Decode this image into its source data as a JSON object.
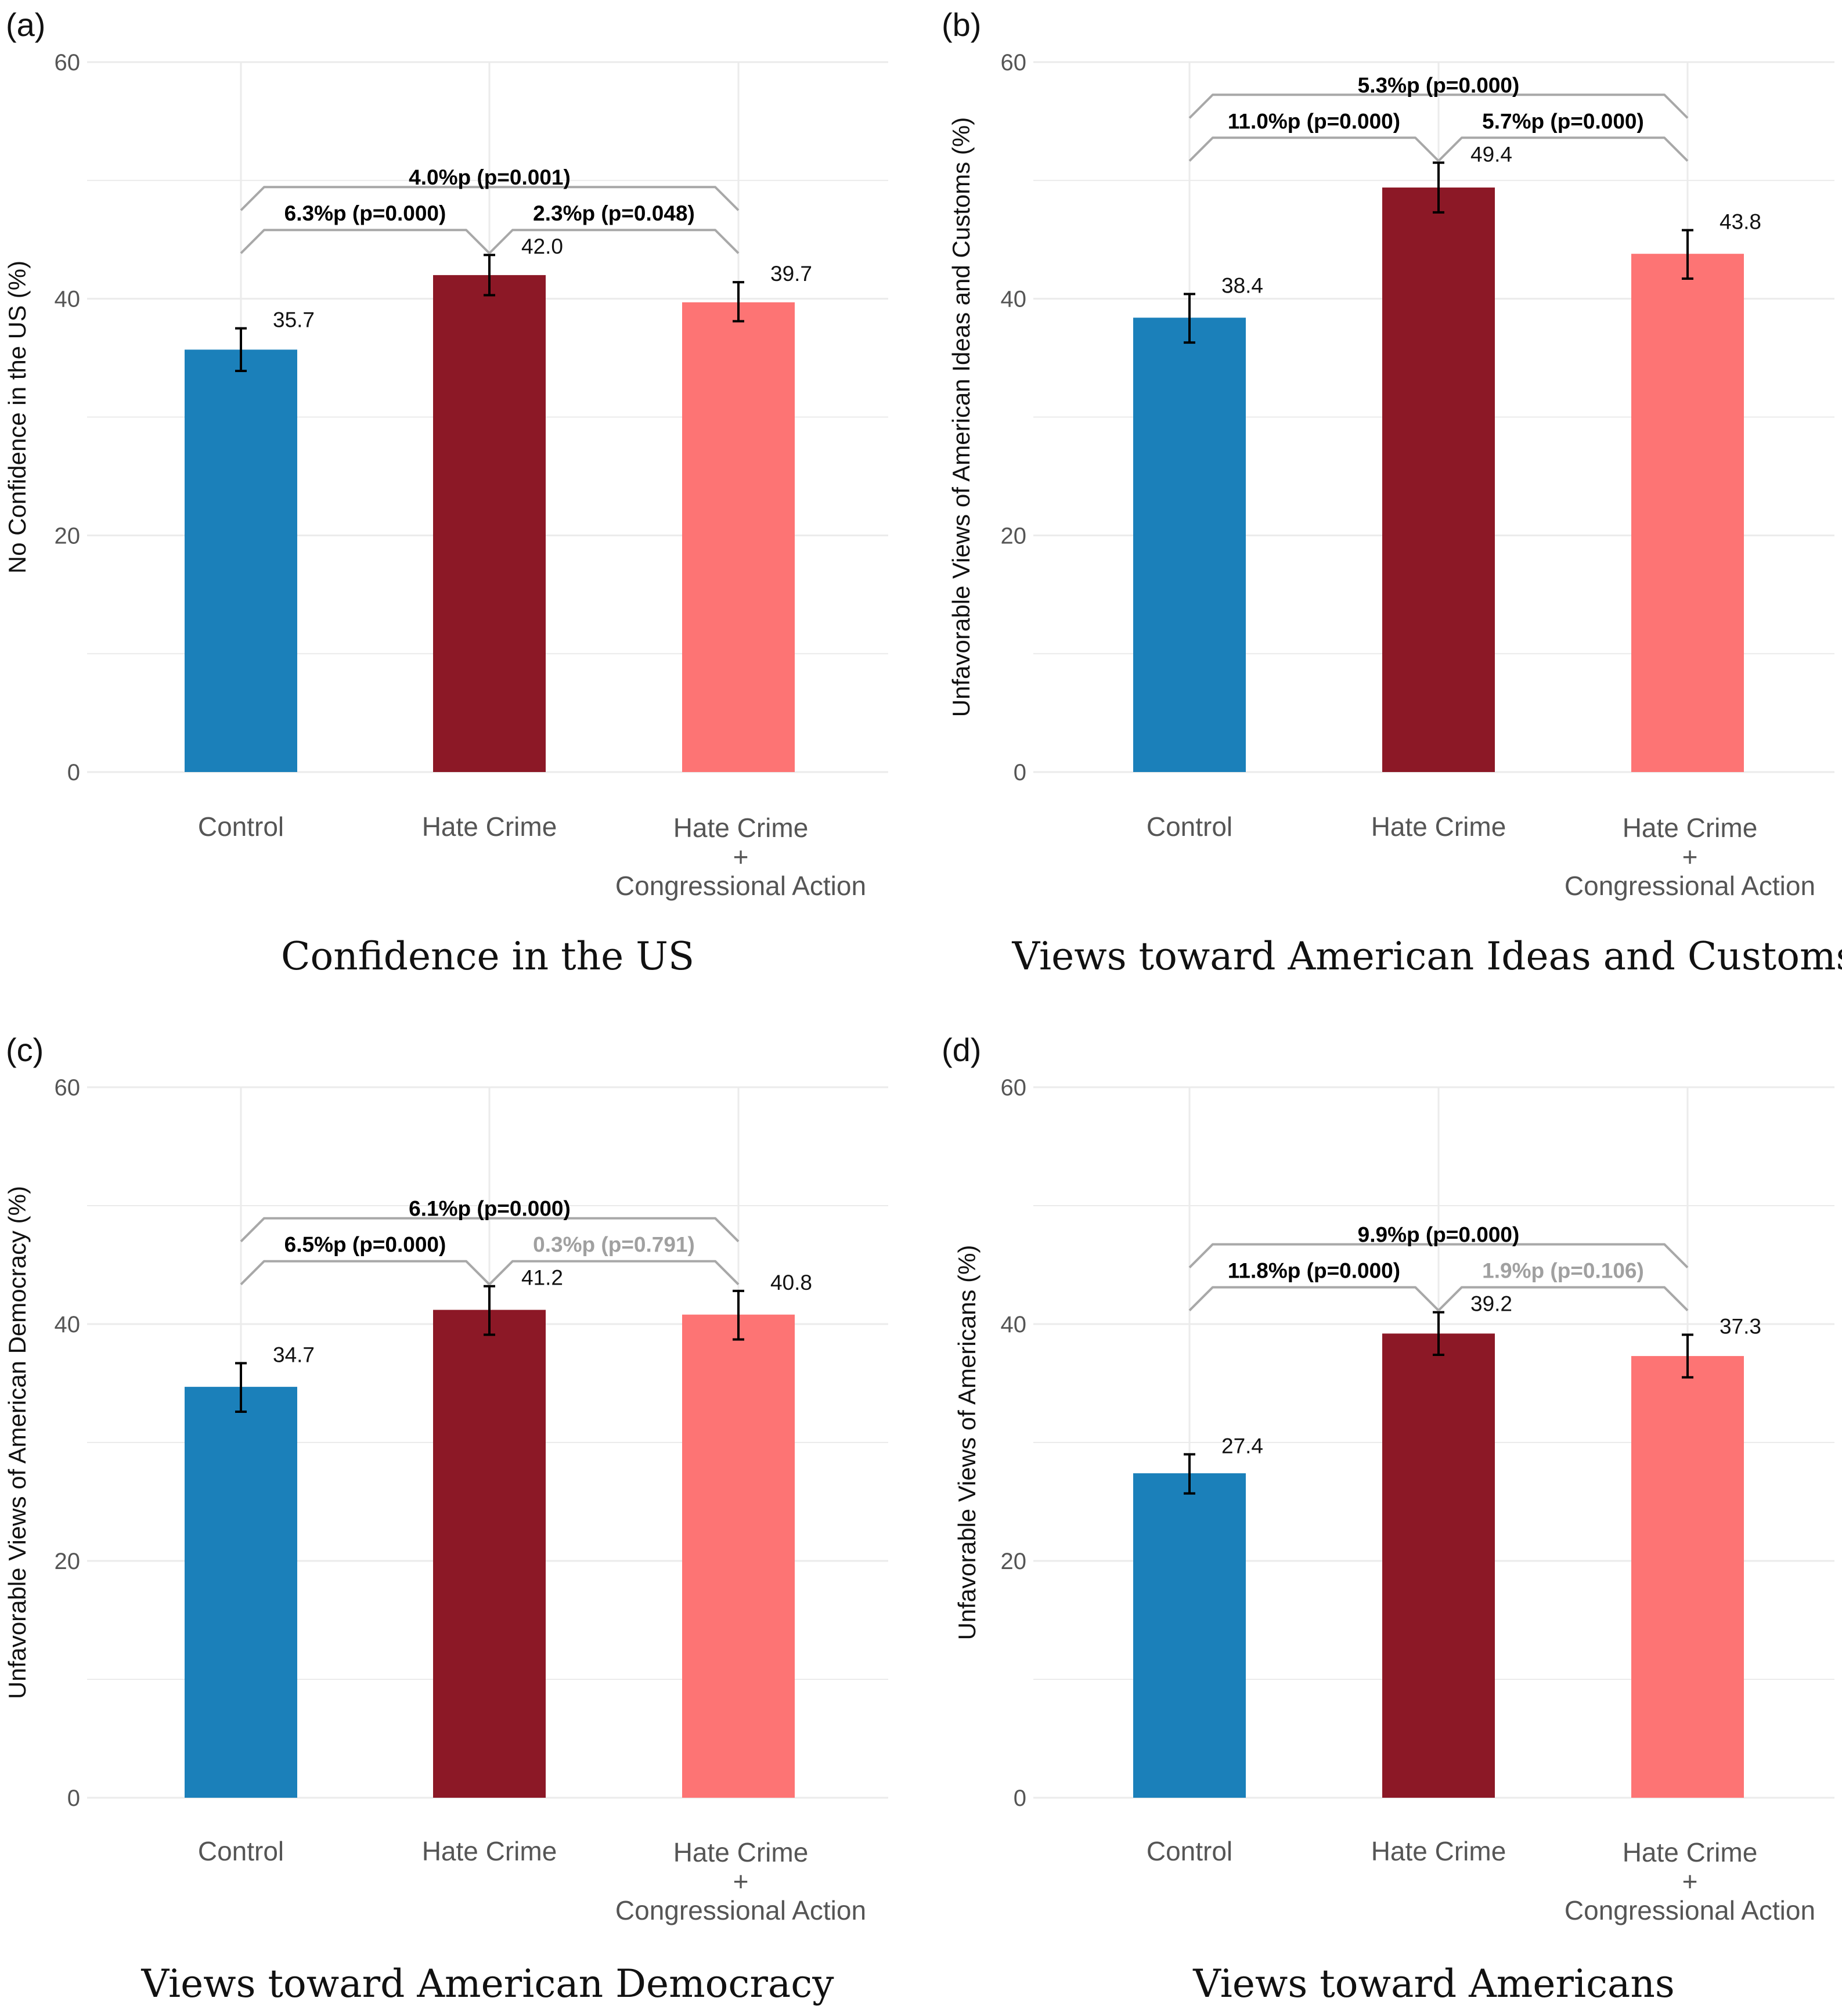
{
  "colors": {
    "control": "#1b80ba",
    "hate_crime": "#8c1826",
    "hate_crime_congress": "#fd7474",
    "grid": "#ebebeb",
    "bracket": "#a8a8a8",
    "significant_text": "#000000",
    "nonsignificant_text": "#a0a0a0"
  },
  "chart_data": [
    {
      "type": "bar",
      "panel": "(a)",
      "title": "Confidence in the US",
      "ylabel": "No Confidence in the US (%)",
      "xlabel": "",
      "ylim": [
        0,
        60
      ],
      "yticks": [
        "0",
        "20",
        "40",
        "60"
      ],
      "categories": [
        "Control",
        "Hate Crime",
        "Hate Crime\n+\nCongressional Action"
      ],
      "category_lines": [
        [
          "Control"
        ],
        [
          "Hate Crime"
        ],
        [
          "Hate Crime",
          "+",
          "Congressional Action"
        ]
      ],
      "values": [
        35.7,
        42.0,
        39.7
      ],
      "value_labels": [
        "35.7",
        "42.0",
        "39.7"
      ],
      "error_low": [
        33.9,
        40.3,
        38.1
      ],
      "error_high": [
        37.5,
        43.7,
        41.4
      ],
      "comparisons": [
        {
          "from": 0,
          "to": 2,
          "label": "4.0%p (p=0.001)",
          "significant": true,
          "level": 2
        },
        {
          "from": 0,
          "to": 1,
          "label": "6.3%p (p=0.000)",
          "significant": true,
          "level": 1
        },
        {
          "from": 1,
          "to": 2,
          "label": "2.3%p (p=0.048)",
          "significant": true,
          "level": 1
        }
      ]
    },
    {
      "type": "bar",
      "panel": "(b)",
      "title": "Views toward American Ideas and Customs",
      "ylabel": "Unfavorable Views of American Ideas and Customs (%)",
      "xlabel": "",
      "ylim": [
        0,
        60
      ],
      "yticks": [
        "0",
        "20",
        "40",
        "60"
      ],
      "categories": [
        "Control",
        "Hate Crime",
        "Hate Crime\n+\nCongressional Action"
      ],
      "category_lines": [
        [
          "Control"
        ],
        [
          "Hate Crime"
        ],
        [
          "Hate Crime",
          "+",
          "Congressional Action"
        ]
      ],
      "values": [
        38.4,
        49.4,
        43.8
      ],
      "value_labels": [
        "38.4",
        "49.4",
        "43.8"
      ],
      "error_low": [
        36.3,
        47.3,
        41.7
      ],
      "error_high": [
        40.4,
        51.5,
        45.8
      ],
      "comparisons": [
        {
          "from": 0,
          "to": 2,
          "label": "5.3%p (p=0.000)",
          "significant": true,
          "level": 2
        },
        {
          "from": 0,
          "to": 1,
          "label": "11.0%p (p=0.000)",
          "significant": true,
          "level": 1
        },
        {
          "from": 1,
          "to": 2,
          "label": "5.7%p (p=0.000)",
          "significant": true,
          "level": 1
        }
      ]
    },
    {
      "type": "bar",
      "panel": "(c)",
      "title": "Views toward American Democracy",
      "ylabel": "Unfavorable Views of American Democracy (%)",
      "xlabel": "",
      "ylim": [
        0,
        60
      ],
      "yticks": [
        "0",
        "20",
        "40",
        "60"
      ],
      "categories": [
        "Control",
        "Hate Crime",
        "Hate Crime\n+\nCongressional Action"
      ],
      "category_lines": [
        [
          "Control"
        ],
        [
          "Hate Crime"
        ],
        [
          "Hate Crime",
          "+",
          "Congressional Action"
        ]
      ],
      "values": [
        34.7,
        41.2,
        40.8
      ],
      "value_labels": [
        "34.7",
        "41.2",
        "40.8"
      ],
      "error_low": [
        32.6,
        39.1,
        38.7
      ],
      "error_high": [
        36.7,
        43.2,
        42.8
      ],
      "comparisons": [
        {
          "from": 0,
          "to": 2,
          "label": "6.1%p (p=0.000)",
          "significant": true,
          "level": 2
        },
        {
          "from": 0,
          "to": 1,
          "label": "6.5%p (p=0.000)",
          "significant": true,
          "level": 1
        },
        {
          "from": 1,
          "to": 2,
          "label": "0.3%p (p=0.791)",
          "significant": false,
          "level": 1
        }
      ]
    },
    {
      "type": "bar",
      "panel": "(d)",
      "title": "Views toward Americans",
      "ylabel": "Unfavorable Views of Americans (%)",
      "xlabel": "",
      "ylim": [
        0,
        60
      ],
      "yticks": [
        "0",
        "20",
        "40",
        "60"
      ],
      "categories": [
        "Control",
        "Hate Crime",
        "Hate Crime\n+\nCongressional Action"
      ],
      "category_lines": [
        [
          "Control"
        ],
        [
          "Hate Crime"
        ],
        [
          "Hate Crime",
          "+",
          "Congressional Action"
        ]
      ],
      "values": [
        27.4,
        39.2,
        37.3
      ],
      "value_labels": [
        "27.4",
        "39.2",
        "37.3"
      ],
      "error_low": [
        25.7,
        37.4,
        35.5
      ],
      "error_high": [
        29.0,
        41.0,
        39.1
      ],
      "comparisons": [
        {
          "from": 0,
          "to": 2,
          "label": "9.9%p (p=0.000)",
          "significant": true,
          "level": 2
        },
        {
          "from": 0,
          "to": 1,
          "label": "11.8%p (p=0.000)",
          "significant": true,
          "level": 1
        },
        {
          "from": 1,
          "to": 2,
          "label": "1.9%p (p=0.106)",
          "significant": false,
          "level": 1
        }
      ]
    }
  ]
}
